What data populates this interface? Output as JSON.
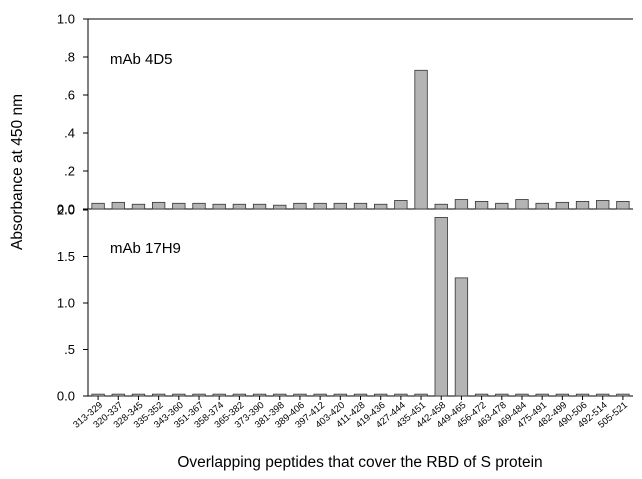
{
  "chart_data": {
    "type": "bar",
    "xlabel": "Overlapping peptides that cover the RBD of S protein",
    "ylabel": "Absorbance at 450 nm",
    "bar_color": "#b4b4b4",
    "bar_stroke": "#333333",
    "categories": [
      "313-329",
      "320-337",
      "328-345",
      "335-352",
      "343-360",
      "351-367",
      "358-374",
      "365-382",
      "373-390",
      "381-398",
      "389-406",
      "397-412",
      "403-420",
      "411-428",
      "419-436",
      "427-444",
      "435-451",
      "442-458",
      "449-465",
      "456-472",
      "463-478",
      "469-484",
      "475-491",
      "482-499",
      "490-506",
      "492-514",
      "505-521"
    ],
    "panels": [
      {
        "label": "mAb 4D5",
        "ylim": [
          0,
          1.0
        ],
        "yticks": [
          0,
          0.2,
          0.4,
          0.6,
          0.8,
          1.0
        ],
        "ytick_labels": [
          "0.0",
          ".2",
          ".4",
          ".6",
          ".8",
          "1.0"
        ],
        "values": [
          0.03,
          0.035,
          0.025,
          0.035,
          0.03,
          0.03,
          0.025,
          0.025,
          0.025,
          0.02,
          0.03,
          0.03,
          0.03,
          0.03,
          0.025,
          0.045,
          0.73,
          0.025,
          0.05,
          0.04,
          0.03,
          0.05,
          0.03,
          0.035,
          0.04,
          0.045,
          0.04
        ]
      },
      {
        "label": "mAb 17H9",
        "ylim": [
          0,
          2.0
        ],
        "yticks": [
          0,
          0.5,
          1.0,
          1.5,
          2.0
        ],
        "ytick_labels": [
          "0.0",
          ".5",
          "1.0",
          "1.5",
          "2.0"
        ],
        "values": [
          0.02,
          0.02,
          0.02,
          0.02,
          0.02,
          0.02,
          0.02,
          0.02,
          0.02,
          0.02,
          0.02,
          0.02,
          0.02,
          0.02,
          0.02,
          0.02,
          0.02,
          1.92,
          1.27,
          0.02,
          0.02,
          0.02,
          0.02,
          0.02,
          0.02,
          0.02,
          0.02
        ]
      }
    ]
  }
}
